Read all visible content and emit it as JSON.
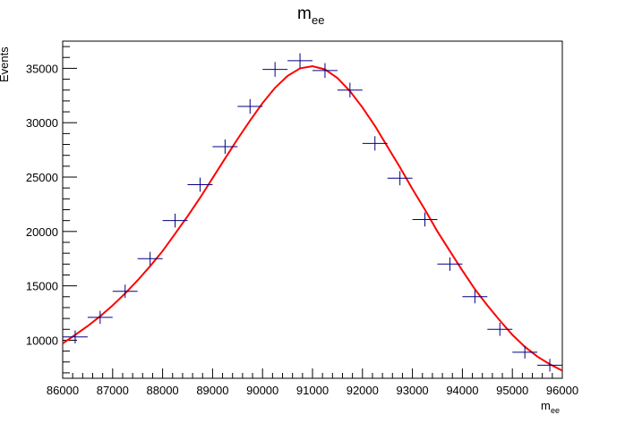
{
  "chart_data": {
    "type": "scatter",
    "title_main": "m",
    "title_sub": "ee",
    "xlabel_main": "m",
    "xlabel_sub": "ee",
    "ylabel": "Events",
    "xlim": [
      86000,
      96000
    ],
    "ylim": [
      6500,
      37500
    ],
    "x_ticks": [
      86000,
      87000,
      88000,
      89000,
      90000,
      91000,
      92000,
      93000,
      94000,
      95000,
      96000
    ],
    "y_ticks": [
      10000,
      15000,
      20000,
      25000,
      30000,
      35000
    ],
    "grid": false,
    "legend": "none",
    "bin_width": 500,
    "series": [
      {
        "kind": "data-points-with-errors",
        "color": "#000080",
        "x": [
          86250,
          86750,
          87250,
          87750,
          88250,
          88750,
          89250,
          89750,
          90250,
          90750,
          91250,
          91750,
          92250,
          92750,
          93250,
          93750,
          94250,
          94750,
          95250,
          95750
        ],
        "y": [
          10300,
          12100,
          14500,
          17500,
          21000,
          24300,
          27800,
          31500,
          34900,
          35700,
          34800,
          33000,
          28100,
          24900,
          21100,
          17000,
          14000,
          11000,
          8900,
          7700
        ]
      },
      {
        "kind": "fit-curve",
        "color": "#ff0000",
        "x": [
          86000,
          86250,
          86500,
          86750,
          87000,
          87250,
          87500,
          87750,
          88000,
          88250,
          88500,
          88750,
          89000,
          89250,
          89500,
          89750,
          90000,
          90250,
          90500,
          90750,
          91000,
          91250,
          91500,
          91750,
          92000,
          92250,
          92500,
          92750,
          93000,
          93250,
          93500,
          93750,
          94000,
          94250,
          94500,
          94750,
          95000,
          95250,
          95500,
          95750,
          96000
        ],
        "y": [
          9700,
          10500,
          11300,
          12200,
          13200,
          14300,
          15500,
          16800,
          18200,
          19800,
          21400,
          23100,
          24900,
          26700,
          28500,
          30200,
          31800,
          33200,
          34300,
          35000,
          35200,
          34900,
          34100,
          32900,
          31400,
          29700,
          27800,
          25900,
          23900,
          22000,
          20000,
          18200,
          16400,
          14700,
          13200,
          11800,
          10500,
          9400,
          8500,
          7800,
          7200
        ]
      }
    ]
  }
}
